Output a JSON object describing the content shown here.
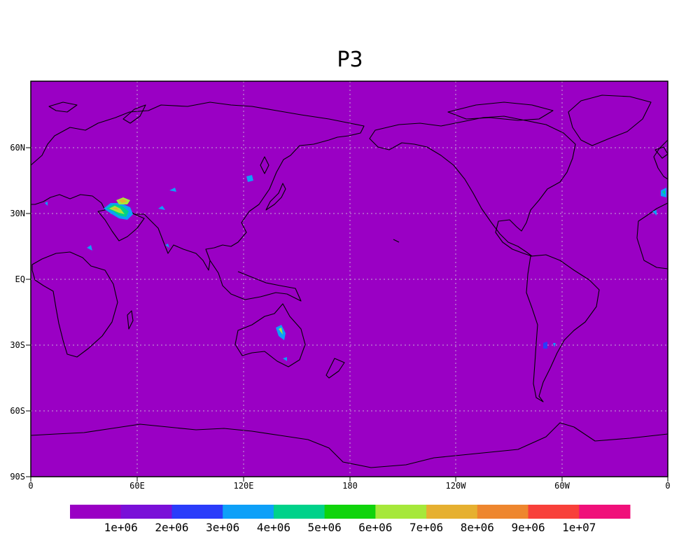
{
  "title": "P3",
  "map": {
    "projection": "cylindrical-equidistant",
    "central_longitude": 180,
    "background_color": "#9a00c4",
    "coastline_color": "#000000",
    "grid": "dotted",
    "lat_ticks": [
      "60N",
      "30N",
      "EQ",
      "30S",
      "60S",
      "90S"
    ],
    "lon_ticks": [
      "0",
      "60E",
      "120E",
      "180",
      "120W",
      "60W",
      "0"
    ]
  },
  "colorbar": {
    "colors": [
      "#9a00c4",
      "#7a10d8",
      "#2a3cfa",
      "#0ea0f8",
      "#00d28a",
      "#10d40c",
      "#a6e83a",
      "#e6b030",
      "#ee862e",
      "#f8403a",
      "#f0107a"
    ],
    "labels": [
      "1e+06",
      "2e+06",
      "3e+06",
      "4e+06",
      "5e+06",
      "6e+06",
      "7e+06",
      "8e+06",
      "9e+06",
      "1e+07"
    ]
  }
}
